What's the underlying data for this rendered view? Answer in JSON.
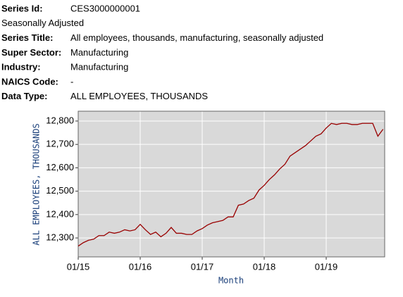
{
  "header": {
    "rows": [
      {
        "label": "Series Id:",
        "value": "CES3000000001"
      },
      {
        "value": "Seasonally Adjusted"
      },
      {
        "label": "Series Title:",
        "value": "All employees, thousands, manufacturing, seasonally adjusted"
      },
      {
        "label": "Super Sector:",
        "value": "Manufacturing"
      },
      {
        "label": "Industry:",
        "value": "Manufacturing"
      },
      {
        "label": "NAICS Code:",
        "value": "-"
      },
      {
        "label": "Data Type:",
        "value": "ALL EMPLOYEES, THOUSANDS"
      }
    ]
  },
  "chart_data": {
    "type": "line",
    "x_label": "Month",
    "y_label": "ALL EMPLOYEES,  THOUSANDS",
    "categories": [
      "01/15",
      null,
      null,
      null,
      null,
      null,
      null,
      null,
      null,
      null,
      null,
      null,
      "01/16",
      null,
      null,
      null,
      null,
      null,
      null,
      null,
      null,
      null,
      null,
      null,
      "01/17",
      null,
      null,
      null,
      null,
      null,
      null,
      null,
      null,
      null,
      null,
      null,
      "01/18",
      null,
      null,
      null,
      null,
      null,
      null,
      null,
      null,
      null,
      null,
      null,
      "01/19",
      null,
      null,
      null,
      null,
      null,
      null,
      null,
      null,
      null,
      null,
      null
    ],
    "values": [
      12265,
      12280,
      12290,
      12295,
      12310,
      12310,
      12325,
      12320,
      12325,
      12335,
      12330,
      12335,
      12358,
      12335,
      12315,
      12325,
      12305,
      12320,
      12345,
      12320,
      12320,
      12315,
      12315,
      12330,
      12340,
      12355,
      12365,
      12370,
      12375,
      12390,
      12390,
      12440,
      12445,
      12460,
      12470,
      12505,
      12525,
      12550,
      12570,
      12595,
      12615,
      12650,
      12665,
      12680,
      12695,
      12715,
      12735,
      12745,
      12770,
      12790,
      12785,
      12790,
      12790,
      12785,
      12785,
      12790,
      12790,
      12790,
      12735,
      12765
    ],
    "color": "#990000",
    "ylim": [
      12219,
      12842
    ],
    "yticks": [
      {
        "value": 12300,
        "label": "12,300"
      },
      {
        "value": 12400,
        "label": "12,400"
      },
      {
        "value": 12500,
        "label": "12,500"
      },
      {
        "value": 12600,
        "label": "12,600"
      },
      {
        "value": 12700,
        "label": "12,700"
      },
      {
        "value": 12800,
        "label": "12,800"
      }
    ],
    "grid": true
  }
}
